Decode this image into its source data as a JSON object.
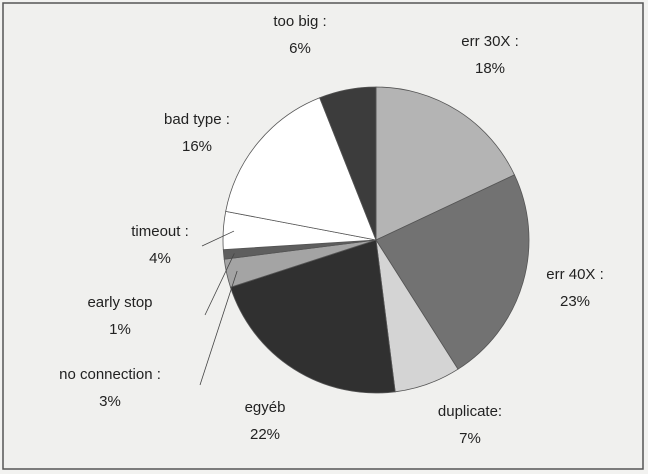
{
  "chart_data": {
    "type": "pie",
    "categories": [
      "err 30X :",
      "err 40X :",
      "duplicate:",
      "egyéb",
      "no connection :",
      "early stop",
      "timeout :",
      "bad type :",
      "too big :"
    ],
    "values": [
      18,
      23,
      7,
      22,
      3,
      1,
      4,
      16,
      6
    ],
    "value_labels": [
      "18%",
      "23%",
      "7%",
      "22%",
      "3%",
      "1%",
      "4%",
      "16%",
      "6%"
    ],
    "colors": [
      "#b4b4b4",
      "#727272",
      "#d4d4d4",
      "#303030",
      "#a4a4a4",
      "#5e5e5e",
      "#ffffff",
      "#ffffff",
      "#3c3c3c"
    ]
  }
}
